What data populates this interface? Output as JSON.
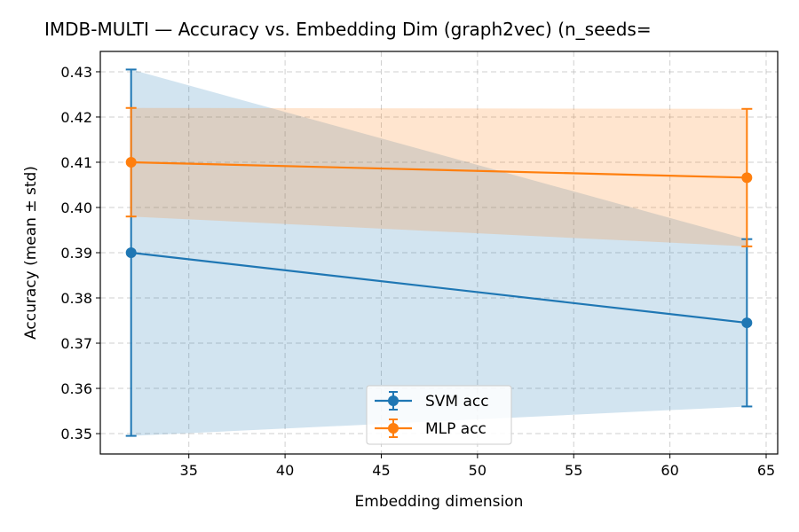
{
  "chart_data": {
    "type": "line",
    "title": "IMDB-MULTI — Accuracy vs. Embedding Dim (graph2vec)  (n_seeds=",
    "xlabel": "Embedding dimension",
    "ylabel": "Accuracy (mean ± std)",
    "xlim": [
      30.4,
      65.6
    ],
    "ylim": [
      0.3455,
      0.4345
    ],
    "xticks": [
      35,
      40,
      45,
      50,
      55,
      60,
      65
    ],
    "yticks": [
      0.35,
      0.36,
      0.37,
      0.38,
      0.39,
      0.4,
      0.41,
      0.42,
      0.43
    ],
    "ytick_labels": [
      "0.35",
      "0.36",
      "0.37",
      "0.38",
      "0.39",
      "0.40",
      "0.41",
      "0.42",
      "0.43"
    ],
    "grid": true,
    "legend_position": "bottom-center",
    "x": [
      32,
      64
    ],
    "series": [
      {
        "name": "SVM acc",
        "color": "#1f77b4",
        "values": [
          0.39,
          0.3745
        ],
        "std": [
          0.0405,
          0.0185
        ]
      },
      {
        "name": "MLP acc",
        "color": "#ff7f0e",
        "values": [
          0.41,
          0.4066
        ],
        "std": [
          0.012,
          0.0152
        ]
      }
    ]
  }
}
